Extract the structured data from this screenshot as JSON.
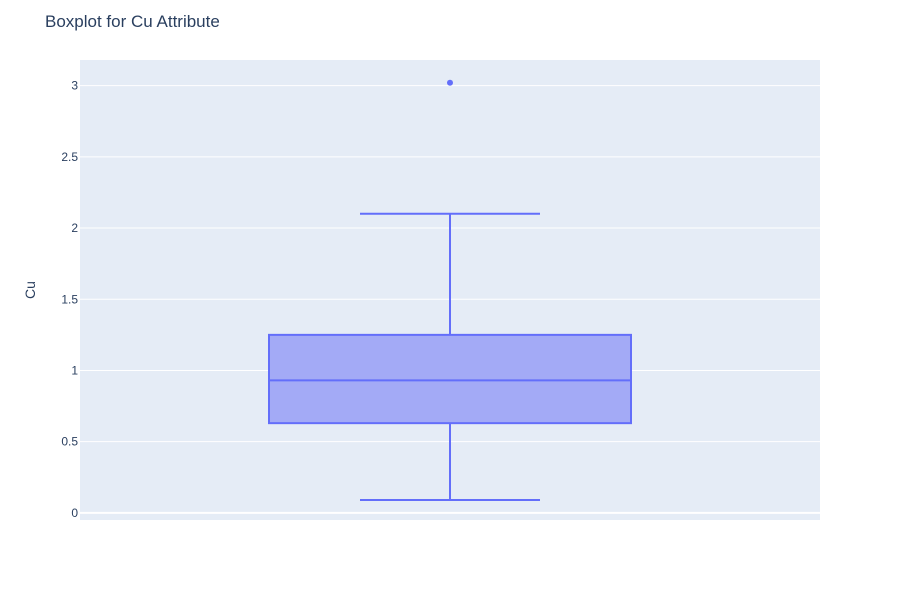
{
  "chart_data": {
    "type": "box",
    "title": "Boxplot for Cu Attribute",
    "xlabel": "",
    "ylabel": "Cu",
    "ylim": [
      -0.05,
      3.18
    ],
    "yticks": [
      0,
      0.5,
      1,
      1.5,
      2,
      2.5,
      3
    ],
    "ytick_labels": [
      "0",
      "0.5",
      "1",
      "1.5",
      "2",
      "2.5",
      "3"
    ],
    "grid": true,
    "legend": "none",
    "series": [
      {
        "min": 0.09,
        "q1": 0.63,
        "median": 0.93,
        "q3": 1.25,
        "max": 2.1,
        "outliers": [
          3.02
        ]
      }
    ],
    "colors": {
      "plot_bg": "#e5ecf6",
      "grid": "#ffffff",
      "line": "#636efa",
      "fill": "#a3aaf6",
      "text": "#2a3f5f"
    }
  }
}
